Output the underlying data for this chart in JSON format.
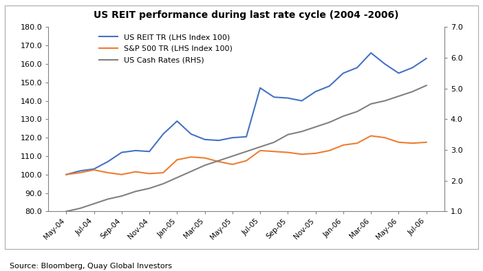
{
  "title": "US REIT performance during last rate cycle (2004 -2006)",
  "source": "Source: Bloomberg, Quay Global Investors",
  "x_tick_labels": [
    "May-04",
    "Jul-04",
    "Sep-04",
    "Nov-04",
    "Jan-05",
    "Mar-05",
    "May-05",
    "Jul-05",
    "Sep-05",
    "Nov-05",
    "Jan-06",
    "Mar-06",
    "May-06",
    "Jul-06"
  ],
  "reit_color": "#4472C4",
  "sp500_color": "#ED7D31",
  "cash_color": "#808080",
  "lhs_ylim": [
    80.0,
    180.0
  ],
  "rhs_ylim": [
    1.0,
    7.0
  ],
  "lhs_yticks": [
    80.0,
    90.0,
    100.0,
    110.0,
    120.0,
    130.0,
    140.0,
    150.0,
    160.0,
    170.0,
    180.0
  ],
  "rhs_yticks": [
    1.0,
    2.0,
    3.0,
    4.0,
    5.0,
    6.0,
    7.0
  ],
  "legend_labels": [
    "US REIT TR (LHS Index 100)",
    "S&P 500 TR (LHS Index 100)",
    "US Cash Rates (RHS)"
  ],
  "background_color": "#ffffff",
  "reit_vals": [
    100.0,
    102.0,
    103.0,
    107.0,
    112.0,
    113.0,
    112.5,
    122.0,
    129.0,
    122.0,
    119.0,
    118.5,
    120.0,
    120.5,
    147.0,
    142.0,
    141.5,
    140.0,
    145.0,
    148.0,
    155.0,
    158.0,
    166.0,
    160.0,
    155.0,
    158.0,
    163.0
  ],
  "sp500_vals": [
    100.0,
    101.0,
    102.5,
    101.0,
    100.0,
    101.5,
    100.5,
    101.0,
    108.0,
    109.5,
    109.0,
    107.0,
    105.5,
    107.5,
    113.0,
    112.5,
    112.0,
    111.0,
    111.5,
    113.0,
    116.0,
    117.0,
    121.0,
    120.0,
    117.5,
    117.0,
    117.5
  ],
  "cash_vals": [
    1.0,
    1.1,
    1.25,
    1.4,
    1.5,
    1.65,
    1.75,
    1.9,
    2.1,
    2.3,
    2.5,
    2.65,
    2.8,
    2.95,
    3.1,
    3.25,
    3.5,
    3.6,
    3.75,
    3.9,
    4.1,
    4.25,
    4.5,
    4.6,
    4.75,
    4.9,
    5.1
  ],
  "x_tick_positions": [
    0,
    2,
    4,
    6,
    8,
    10,
    12,
    14,
    16,
    18,
    20,
    22,
    24,
    26
  ]
}
